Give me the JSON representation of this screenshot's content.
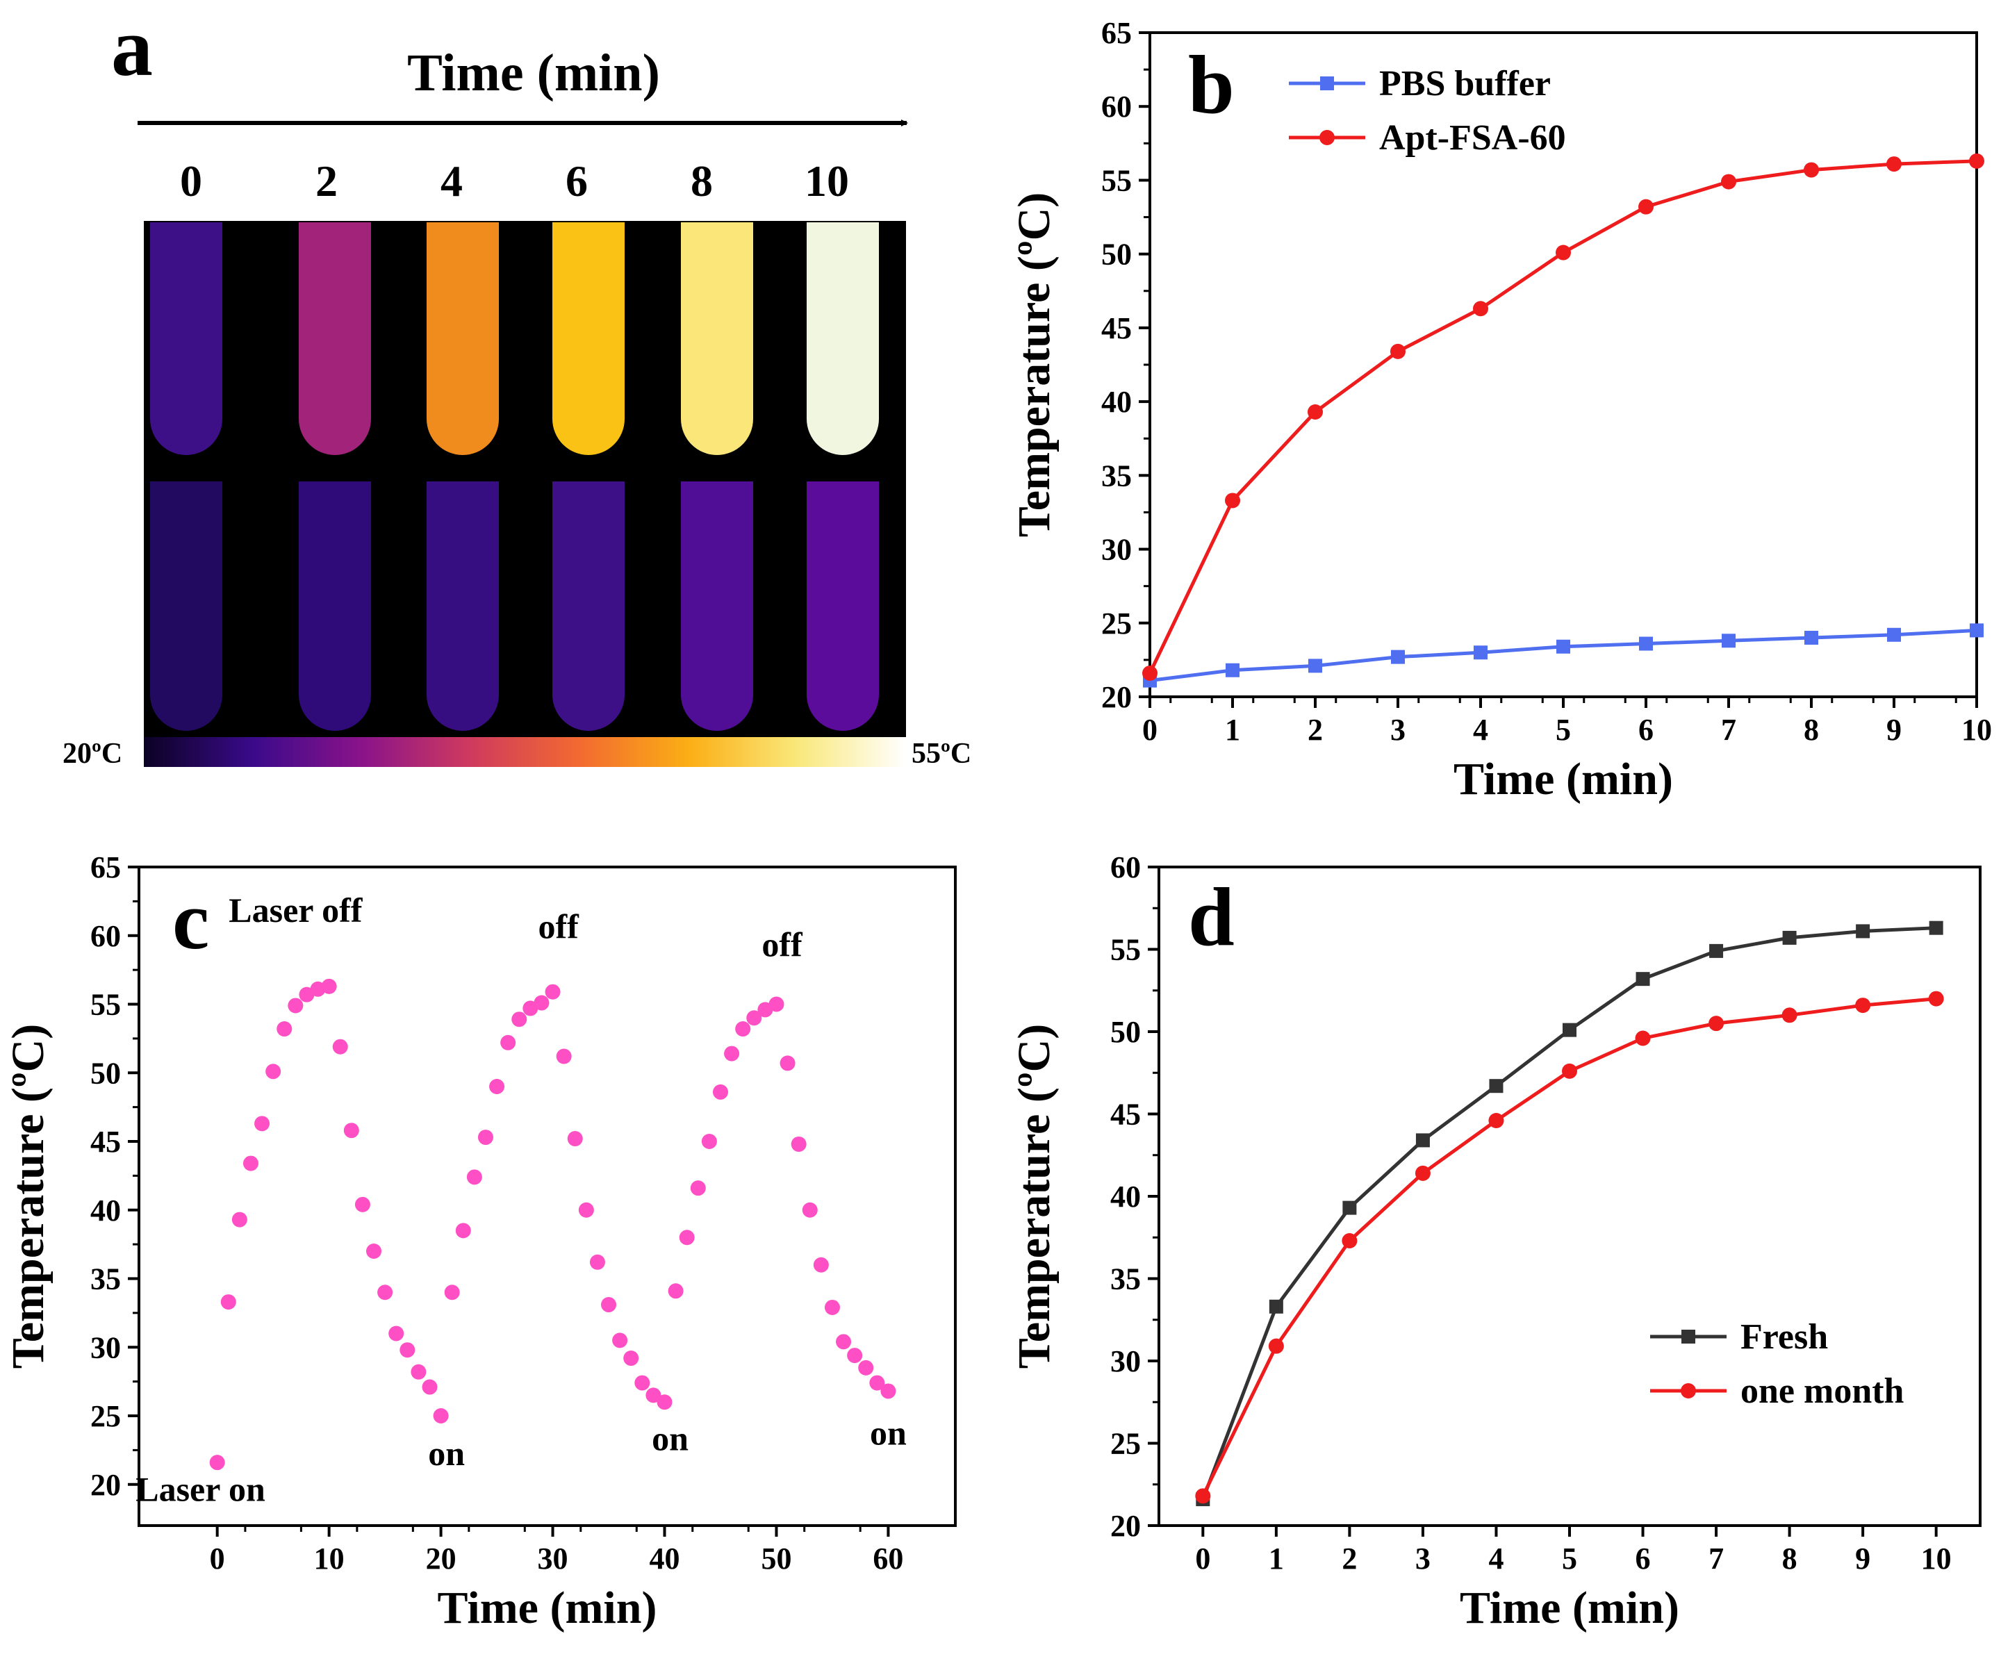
{
  "panel_a": {
    "label": "a",
    "title": "Time (min)",
    "times": [
      "0",
      "2",
      "4",
      "6",
      "8",
      "10"
    ],
    "tube_colors_top": [
      "#3d1088",
      "#a2237a",
      "#f08c1e",
      "#f9c214",
      "#fbe67a",
      "#f1f6e0"
    ],
    "tube_colors_bottom": [
      "#220a60",
      "#2e0b78",
      "#370e82",
      "#3d1088",
      "#500e96",
      "#5c0c9a"
    ],
    "colorbar": {
      "min_label": "20ºC",
      "max_label": "55ºC",
      "stops": [
        "#0b0224",
        "#3a0a8a",
        "#8a138a",
        "#cf3a5e",
        "#f26a30",
        "#fbae15",
        "#f9e87a",
        "#ffffff"
      ]
    }
  },
  "chart_data": [
    {
      "panel": "b",
      "type": "line",
      "xlabel": "Time (min)",
      "ylabel": "Temperature (ºC)",
      "xlim": [
        0,
        10
      ],
      "ylim": [
        20,
        65
      ],
      "xticks": [
        0,
        1,
        2,
        3,
        4,
        5,
        6,
        7,
        8,
        9,
        10
      ],
      "yticks": [
        20,
        25,
        30,
        35,
        40,
        45,
        50,
        55,
        60,
        65
      ],
      "x": [
        0,
        1,
        2,
        3,
        4,
        5,
        6,
        7,
        8,
        9,
        10
      ],
      "legend_position": "top-left",
      "series": [
        {
          "name": "PBS buffer",
          "color": "#4f6ef0",
          "marker": "square",
          "values": [
            21.1,
            21.8,
            22.1,
            22.7,
            23.0,
            23.4,
            23.6,
            23.8,
            24.0,
            24.2,
            24.5
          ]
        },
        {
          "name": "Apt-FSA-60",
          "color": "#ee1c1c",
          "marker": "circle",
          "values": [
            21.6,
            33.3,
            39.3,
            43.4,
            46.3,
            50.1,
            53.2,
            54.9,
            55.7,
            56.1,
            56.3
          ]
        }
      ]
    },
    {
      "panel": "c",
      "type": "scatter",
      "xlabel": "Time (min)",
      "ylabel": "Temperature (ºC)",
      "xlim": [
        -7,
        66
      ],
      "ylim": [
        17,
        65
      ],
      "xticks": [
        0,
        10,
        20,
        30,
        40,
        50,
        60
      ],
      "yticks": [
        20,
        25,
        30,
        35,
        40,
        45,
        50,
        55,
        60,
        65
      ],
      "series": [
        {
          "color": "#ff4fc4",
          "x": [
            0,
            1,
            2,
            3,
            4,
            5,
            6,
            7,
            8,
            9,
            10,
            11,
            12,
            13,
            14,
            15,
            16,
            17,
            18,
            19,
            20,
            21,
            22,
            23,
            24,
            25,
            26,
            27,
            28,
            29,
            30,
            31,
            32,
            33,
            34,
            35,
            36,
            37,
            38,
            39,
            40,
            41,
            42,
            43,
            44,
            45,
            46,
            47,
            48,
            49,
            50,
            51,
            52,
            53,
            54,
            55,
            56,
            57,
            58,
            59,
            60
          ],
          "values": [
            21.6,
            33.3,
            39.3,
            43.4,
            46.3,
            50.1,
            53.2,
            54.9,
            55.7,
            56.1,
            56.3,
            51.9,
            45.8,
            40.4,
            37.0,
            34.0,
            31.0,
            29.8,
            28.2,
            27.1,
            25.0,
            34.0,
            38.5,
            42.4,
            45.3,
            49.0,
            52.2,
            53.9,
            54.7,
            55.1,
            55.9,
            51.2,
            45.2,
            40.0,
            36.2,
            33.1,
            30.5,
            29.2,
            27.4,
            26.5,
            26.0,
            34.1,
            38.0,
            41.6,
            45.0,
            48.6,
            51.4,
            53.2,
            54.0,
            54.6,
            55.0,
            50.7,
            44.8,
            40.0,
            36.0,
            32.9,
            30.4,
            29.4,
            28.5,
            27.4,
            26.8
          ]
        }
      ],
      "annotations": [
        {
          "text": "Laser on",
          "x": -1.5,
          "y": 18.8
        },
        {
          "text": "Laser off",
          "x": 7,
          "y": 61
        },
        {
          "text": "off",
          "x": 30.5,
          "y": 59.8
        },
        {
          "text": "off",
          "x": 50.5,
          "y": 58.5
        },
        {
          "text": "on",
          "x": 20.5,
          "y": 21.4
        },
        {
          "text": "on",
          "x": 40.5,
          "y": 22.5
        },
        {
          "text": "on",
          "x": 60,
          "y": 22.9
        }
      ]
    },
    {
      "panel": "d",
      "type": "line",
      "xlabel": "Time (min)",
      "ylabel": "Temperature (ºC)",
      "xlim": [
        -0.6,
        10.6
      ],
      "ylim": [
        20,
        60
      ],
      "xticks": [
        0,
        1,
        2,
        3,
        4,
        5,
        6,
        7,
        8,
        9,
        10
      ],
      "yticks": [
        20,
        25,
        30,
        35,
        40,
        45,
        50,
        55,
        60
      ],
      "x": [
        0,
        1,
        2,
        3,
        4,
        5,
        6,
        7,
        8,
        9,
        10
      ],
      "legend_position": "bottom-right",
      "series": [
        {
          "name": "Fresh",
          "color": "#333333",
          "marker": "square",
          "values": [
            21.6,
            33.3,
            39.3,
            43.4,
            46.7,
            50.1,
            53.2,
            54.9,
            55.7,
            56.1,
            56.3
          ]
        },
        {
          "name": "one month",
          "color": "#ee1c1c",
          "marker": "circle",
          "values": [
            21.8,
            30.9,
            37.3,
            41.4,
            44.6,
            47.6,
            49.6,
            50.5,
            51.0,
            51.6,
            52.0
          ]
        }
      ]
    }
  ]
}
